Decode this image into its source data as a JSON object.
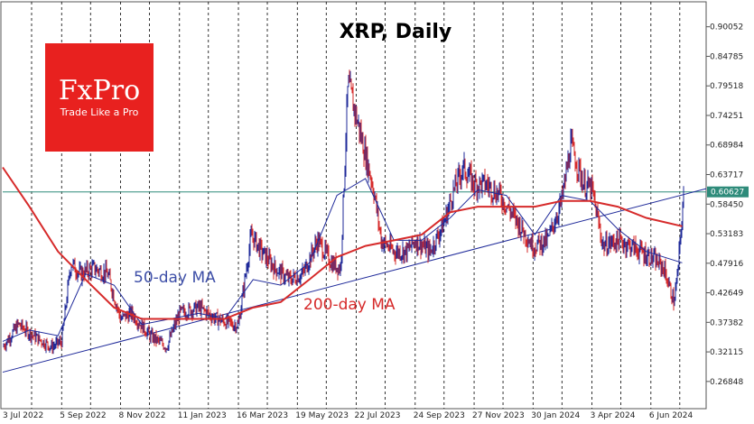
{
  "chart_data": {
    "type": "candlestick",
    "title": "XRP, Daily",
    "logo": {
      "brand": "FxPro",
      "tagline": "Trade Like a Pro"
    },
    "current_price": 0.60627,
    "current_price_label": "0.60627",
    "y_ticks": [
      "0.26848",
      "0.32115",
      "0.37382",
      "0.42649",
      "0.47916",
      "0.53183",
      "0.58450",
      "0.63717",
      "0.68984",
      "0.74251",
      "0.79518",
      "0.84785",
      "0.90052"
    ],
    "x_ticks": [
      "3 Jul 2022",
      "5 Sep 2022",
      "8 Nov 2022",
      "11 Jan 2023",
      "16 Mar 2023",
      "19 May 2023",
      "22 Jul 2023",
      "24 Sep 2023",
      "27 Nov 2023",
      "30 Jan 2024",
      "3 Apr 2024",
      "6 Jun 2024"
    ],
    "ylim": [
      0.22,
      0.945
    ],
    "grid": "vertical-dashed",
    "annotations": [
      {
        "text": "50-day MA",
        "color": "#3e4fa8"
      },
      {
        "text": "200-day MA",
        "color": "#d62a2a"
      }
    ],
    "series": [
      {
        "name": "50-day MA",
        "color": "#1f2a9a",
        "x": [
          "2022-07-03",
          "2022-08-01",
          "2022-09-01",
          "2022-10-01",
          "2022-11-01",
          "2022-12-01",
          "2023-01-01",
          "2023-02-01",
          "2023-03-01",
          "2023-04-01",
          "2023-05-01",
          "2023-06-01",
          "2023-07-01",
          "2023-08-01",
          "2023-09-01",
          "2023-10-01",
          "2023-11-01",
          "2023-12-01",
          "2024-01-01",
          "2024-02-01",
          "2024-03-01",
          "2024-04-01",
          "2024-05-01",
          "2024-06-01",
          "2024-07-10"
        ],
        "values": [
          0.34,
          0.36,
          0.35,
          0.46,
          0.44,
          0.37,
          0.38,
          0.39,
          0.38,
          0.45,
          0.44,
          0.48,
          0.6,
          0.63,
          0.52,
          0.52,
          0.56,
          0.61,
          0.6,
          0.53,
          0.6,
          0.59,
          0.54,
          0.5,
          0.48
        ]
      },
      {
        "name": "200-day MA",
        "color": "#d62a2a",
        "x": [
          "2022-07-03",
          "2022-08-01",
          "2022-09-01",
          "2022-10-01",
          "2022-11-01",
          "2022-12-01",
          "2023-01-01",
          "2023-02-01",
          "2023-03-01",
          "2023-04-01",
          "2023-05-01",
          "2023-06-01",
          "2023-07-01",
          "2023-08-01",
          "2023-09-01",
          "2023-10-01",
          "2023-11-01",
          "2023-12-01",
          "2024-01-01",
          "2024-02-01",
          "2024-03-01",
          "2024-04-01",
          "2024-05-01",
          "2024-06-01",
          "2024-07-10"
        ],
        "values": [
          0.65,
          0.58,
          0.5,
          0.45,
          0.4,
          0.38,
          0.38,
          0.38,
          0.38,
          0.4,
          0.41,
          0.45,
          0.49,
          0.51,
          0.52,
          0.53,
          0.57,
          0.58,
          0.58,
          0.58,
          0.59,
          0.59,
          0.58,
          0.56,
          0.545
        ]
      },
      {
        "name": "XRP close",
        "x": [
          "2022-07-03",
          "2022-07-20",
          "2022-08-05",
          "2022-08-25",
          "2022-09-05",
          "2022-09-15",
          "2022-09-25",
          "2022-10-10",
          "2022-10-25",
          "2022-11-08",
          "2022-11-20",
          "2022-12-10",
          "2022-12-28",
          "2023-01-11",
          "2023-02-01",
          "2023-02-20",
          "2023-03-10",
          "2023-03-16",
          "2023-03-30",
          "2023-04-10",
          "2023-04-25",
          "2023-05-10",
          "2023-05-25",
          "2023-06-10",
          "2023-06-25",
          "2023-07-05",
          "2023-07-13",
          "2023-07-25",
          "2023-08-10",
          "2023-08-18",
          "2023-09-01",
          "2023-09-15",
          "2023-09-24",
          "2023-10-10",
          "2023-10-25",
          "2023-11-05",
          "2023-11-15",
          "2023-11-27",
          "2023-12-10",
          "2023-12-25",
          "2024-01-10",
          "2024-01-30",
          "2024-02-15",
          "2024-03-01",
          "2024-03-11",
          "2024-03-25",
          "2024-04-03",
          "2024-04-15",
          "2024-05-01",
          "2024-05-15",
          "2024-06-06",
          "2024-06-20",
          "2024-07-01",
          "2024-07-05",
          "2024-07-12"
        ],
        "values": [
          0.33,
          0.37,
          0.35,
          0.33,
          0.34,
          0.48,
          0.46,
          0.47,
          0.46,
          0.38,
          0.39,
          0.35,
          0.33,
          0.39,
          0.4,
          0.38,
          0.37,
          0.37,
          0.53,
          0.5,
          0.47,
          0.45,
          0.46,
          0.52,
          0.48,
          0.47,
          0.8,
          0.72,
          0.61,
          0.52,
          0.5,
          0.5,
          0.52,
          0.5,
          0.55,
          0.61,
          0.65,
          0.62,
          0.62,
          0.6,
          0.56,
          0.51,
          0.52,
          0.59,
          0.69,
          0.62,
          0.61,
          0.51,
          0.52,
          0.51,
          0.49,
          0.47,
          0.41,
          0.46,
          0.61
        ]
      }
    ]
  }
}
